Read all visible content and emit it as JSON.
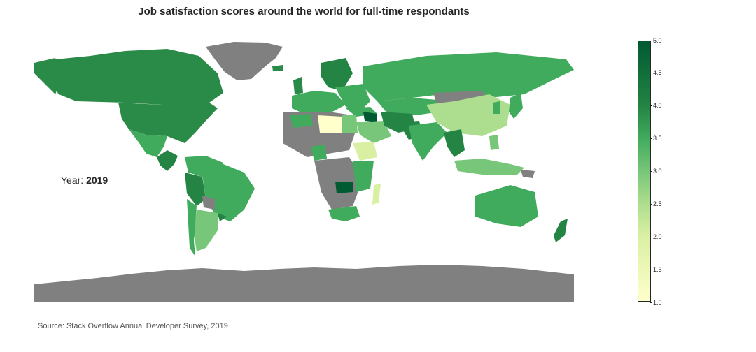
{
  "title": "Job satisfaction scores around the world for full-time respondants",
  "year_label": "Year:",
  "year_value": "2019",
  "source": "Source: Stack Overflow Annual Developer Survey, 2019",
  "colorbar": {
    "ticks": [
      "5.0",
      "4.5",
      "4.0",
      "3.5",
      "3.0",
      "2.5",
      "2.0",
      "1.5",
      "1.0"
    ],
    "min": 1.0,
    "max": 5.0
  },
  "colors": {
    "no_data": "#808080",
    "scale": [
      "#ffffcc",
      "#d9f0a3",
      "#addd8e",
      "#78c679",
      "#41ab5d",
      "#238443",
      "#005a32"
    ]
  }
}
